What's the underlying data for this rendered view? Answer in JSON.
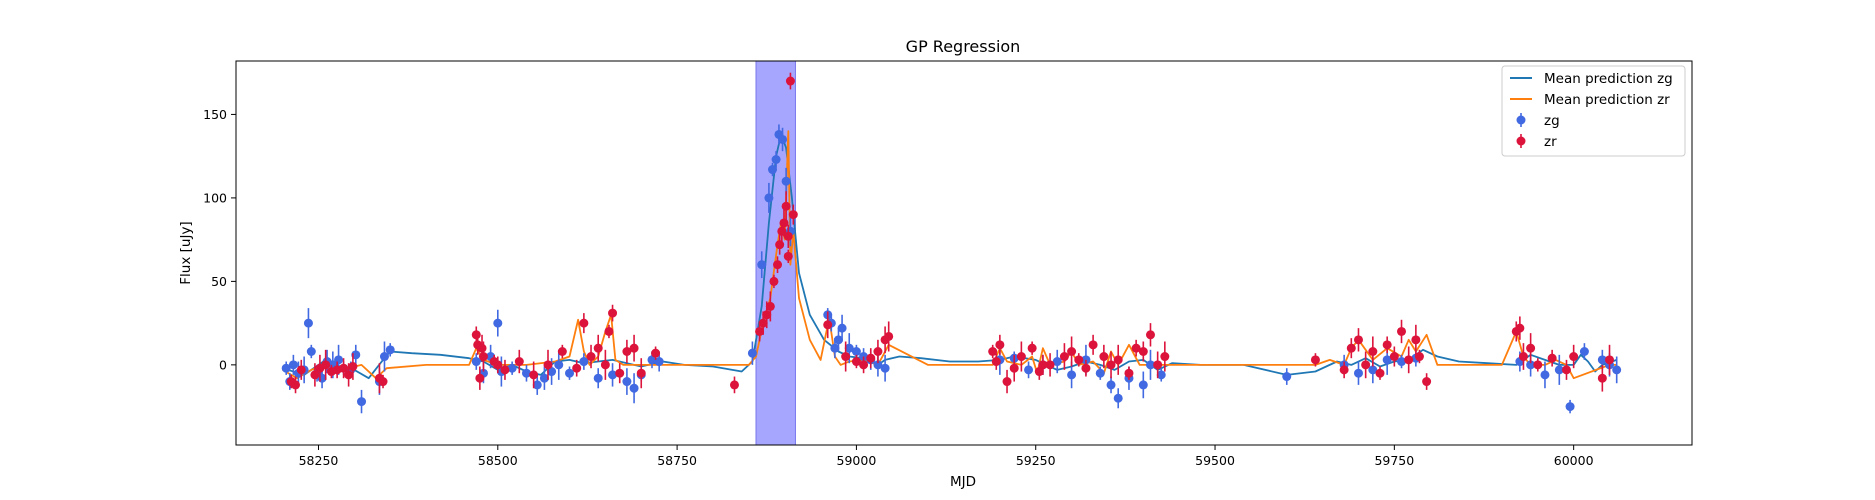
{
  "chart_data": {
    "type": "scatter",
    "title": "GP Regression",
    "xlabel": "MJD",
    "ylabel": "Flux [uJy]",
    "xlim": [
      58135,
      60165
    ],
    "ylim": [
      -48,
      182
    ],
    "xticks": [
      58250,
      58500,
      58750,
      59000,
      59250,
      59500,
      59750,
      60000
    ],
    "yticks": [
      0,
      50,
      100,
      150
    ],
    "grid": false,
    "legend_position": "top-right",
    "shaded_region": {
      "x0": 58860,
      "x1": 58915,
      "color": "#a6a6ff"
    },
    "series": [
      {
        "name": "Mean prediction zg",
        "kind": "line",
        "color": "#1f77b4",
        "x": [
          58200,
          58230,
          58260,
          58280,
          58300,
          58320,
          58340,
          58350,
          58380,
          58420,
          58460,
          58480,
          58500,
          58520,
          58540,
          58560,
          58580,
          58600,
          58620,
          58640,
          58660,
          58680,
          58700,
          58730,
          58760,
          58800,
          58840,
          58855,
          58868,
          58878,
          58888,
          58895,
          58902,
          58910,
          58920,
          58935,
          58955,
          58975,
          58990,
          59010,
          59030,
          59040,
          59060,
          59090,
          59130,
          59170,
          59200,
          59220,
          59250,
          59280,
          59300,
          59320,
          59340,
          59360,
          59380,
          59400,
          59420,
          59440,
          59480,
          59540,
          59600,
          59640,
          59670,
          59690,
          59710,
          59730,
          59750,
          59770,
          59790,
          59810,
          59840,
          59880,
          59920,
          59940,
          59960,
          59980,
          60000,
          60010,
          60020,
          60030,
          60040,
          60060
        ],
        "y": [
          -2,
          -6,
          3,
          -1,
          -3,
          -8,
          3,
          8,
          7,
          6,
          4,
          2,
          -3,
          0,
          -4,
          -6,
          2,
          3,
          1,
          2,
          3,
          1,
          -1,
          2,
          0,
          -1,
          -4,
          2,
          35,
          85,
          125,
          138,
          130,
          100,
          55,
          30,
          15,
          8,
          5,
          4,
          0,
          3,
          5,
          4,
          2,
          2,
          3,
          5,
          3,
          -3,
          -1,
          2,
          0,
          -3,
          2,
          3,
          -3,
          1,
          0,
          0,
          -6,
          -4,
          2,
          0,
          4,
          -1,
          2,
          3,
          9,
          5,
          2,
          1,
          0,
          6,
          3,
          0,
          0,
          6,
          2,
          -4,
          0,
          3
        ]
      },
      {
        "name": "Mean prediction zr",
        "kind": "line",
        "color": "#ff7f0e",
        "x": [
          58200,
          58220,
          58240,
          58260,
          58290,
          58310,
          58330,
          58345,
          58400,
          58460,
          58470,
          58480,
          58500,
          58540,
          58580,
          58600,
          58612,
          58620,
          58628,
          58640,
          58650,
          58658,
          58664,
          58675,
          58700,
          58750,
          58850,
          58860,
          58870,
          58880,
          58890,
          58895,
          58900,
          58905,
          58908,
          58912,
          58920,
          58935,
          58950,
          58962,
          58970,
          58978,
          58990,
          59010,
          59030,
          59045,
          59100,
          59190,
          59200,
          59210,
          59230,
          59245,
          59252,
          59260,
          59270,
          59290,
          59300,
          59310,
          59330,
          59345,
          59355,
          59365,
          59380,
          59395,
          59420,
          59430,
          59500,
          59640,
          59660,
          59680,
          59690,
          59700,
          59720,
          59740,
          59760,
          59770,
          59780,
          59795,
          59810,
          59900,
          59920,
          59930,
          59940,
          59960,
          59975,
          59990,
          60000,
          60050,
          60060
        ],
        "y": [
          -3,
          -8,
          -3,
          0,
          -2,
          0,
          -8,
          -2,
          0,
          0,
          10,
          3,
          0,
          0,
          2,
          5,
          27,
          8,
          0,
          5,
          20,
          30,
          3,
          0,
          0,
          0,
          0,
          5,
          25,
          40,
          72,
          85,
          75,
          140,
          60,
          80,
          40,
          15,
          3,
          28,
          5,
          0,
          2,
          3,
          0,
          12,
          0,
          0,
          10,
          2,
          0,
          5,
          -5,
          10,
          0,
          2,
          8,
          0,
          2,
          -5,
          8,
          0,
          12,
          0,
          0,
          0,
          0,
          0,
          3,
          0,
          10,
          15,
          3,
          10,
          5,
          15,
          8,
          18,
          0,
          0,
          20,
          5,
          0,
          0,
          3,
          0,
          -8,
          0,
          0
        ]
      },
      {
        "name": "zg",
        "kind": "errorbar",
        "color": "#4169e1",
        "x": [
          58205,
          58210,
          58215,
          58222,
          58230,
          58236,
          58240,
          58248,
          58255,
          58262,
          58270,
          58278,
          58285,
          58295,
          58302,
          58310,
          58335,
          58342,
          58350,
          58470,
          58480,
          58490,
          58500,
          58505,
          58520,
          58540,
          58555,
          58565,
          58575,
          58585,
          58600,
          58620,
          58640,
          58660,
          58680,
          58690,
          58700,
          58715,
          58725,
          58855,
          58868,
          58878,
          58883,
          58888,
          58892,
          58897,
          58902,
          58908,
          58960,
          58965,
          58970,
          58975,
          58980,
          58990,
          59000,
          59010,
          59020,
          59030,
          59040,
          59200,
          59220,
          59240,
          59260,
          59280,
          59300,
          59320,
          59340,
          59355,
          59365,
          59380,
          59400,
          59410,
          59425,
          59600,
          59680,
          59700,
          59720,
          59740,
          59760,
          59780,
          59925,
          59940,
          59960,
          59980,
          59995,
          60015,
          60040,
          60050,
          60060
        ],
        "y": [
          -2,
          -10,
          0,
          -5,
          -3,
          25,
          8,
          -5,
          -8,
          2,
          0,
          3,
          -2,
          -3,
          6,
          -22,
          -10,
          5,
          9,
          2,
          -5,
          5,
          25,
          -4,
          -2,
          -5,
          -12,
          -8,
          -4,
          0,
          -5,
          2,
          -8,
          -6,
          -10,
          -14,
          -6,
          3,
          2,
          7,
          60,
          100,
          117,
          123,
          138,
          135,
          110,
          80,
          30,
          25,
          10,
          15,
          22,
          10,
          8,
          5,
          3,
          0,
          -2,
          3,
          4,
          -3,
          0,
          2,
          -6,
          3,
          -5,
          -12,
          -20,
          -8,
          -12,
          0,
          -6,
          -7,
          0,
          -5,
          -3,
          3,
          2,
          4,
          2,
          0,
          -6,
          -3,
          -25,
          8,
          3,
          0,
          -3
        ]
      },
      {
        "name": "zr",
        "kind": "errorbar",
        "color": "#dc143c",
        "x": [
          58212,
          58218,
          58226,
          58245,
          58252,
          58260,
          58268,
          58276,
          58285,
          58292,
          58298,
          58335,
          58340,
          58470,
          58472,
          58475,
          58478,
          58480,
          58495,
          58500,
          58510,
          58530,
          58550,
          58570,
          58590,
          58610,
          58620,
          58630,
          58640,
          58650,
          58655,
          58660,
          58670,
          58680,
          58690,
          58700,
          58720,
          58830,
          58865,
          58870,
          58875,
          58880,
          58885,
          58890,
          58893,
          58896,
          58899,
          58902,
          58905,
          58908,
          58912,
          58905,
          58960,
          58985,
          59000,
          59010,
          59020,
          59030,
          59040,
          59045,
          59190,
          59195,
          59200,
          59210,
          59220,
          59230,
          59245,
          59255,
          59260,
          59270,
          59290,
          59300,
          59310,
          59320,
          59330,
          59345,
          59355,
          59365,
          59380,
          59390,
          59400,
          59410,
          59420,
          59430,
          59640,
          59680,
          59690,
          59700,
          59710,
          59720,
          59730,
          59740,
          59750,
          59760,
          59770,
          59780,
          59785,
          59795,
          59920,
          59925,
          59930,
          59940,
          59950,
          59970,
          59990,
          60000,
          60040,
          60050
        ],
        "y": [
          -10,
          -12,
          -3,
          -6,
          -2,
          0,
          -4,
          -3,
          -2,
          -6,
          -1,
          -8,
          -10,
          18,
          12,
          -8,
          10,
          5,
          2,
          0,
          -3,
          2,
          -6,
          0,
          8,
          -2,
          25,
          5,
          10,
          0,
          20,
          31,
          -5,
          8,
          10,
          -5,
          7,
          -12,
          20,
          25,
          30,
          35,
          50,
          60,
          72,
          80,
          85,
          95,
          65,
          170,
          90,
          77,
          24,
          5,
          2,
          0,
          4,
          8,
          15,
          17,
          8,
          2,
          12,
          -10,
          -2,
          5,
          10,
          -4,
          0,
          0,
          5,
          8,
          3,
          -2,
          12,
          5,
          0,
          3,
          -5,
          10,
          8,
          18,
          0,
          5,
          3,
          -3,
          10,
          15,
          0,
          8,
          -5,
          12,
          5,
          20,
          3,
          15,
          5,
          -10,
          20,
          22,
          5,
          10,
          0,
          4,
          -3,
          5,
          -8,
          3
        ]
      }
    ]
  }
}
